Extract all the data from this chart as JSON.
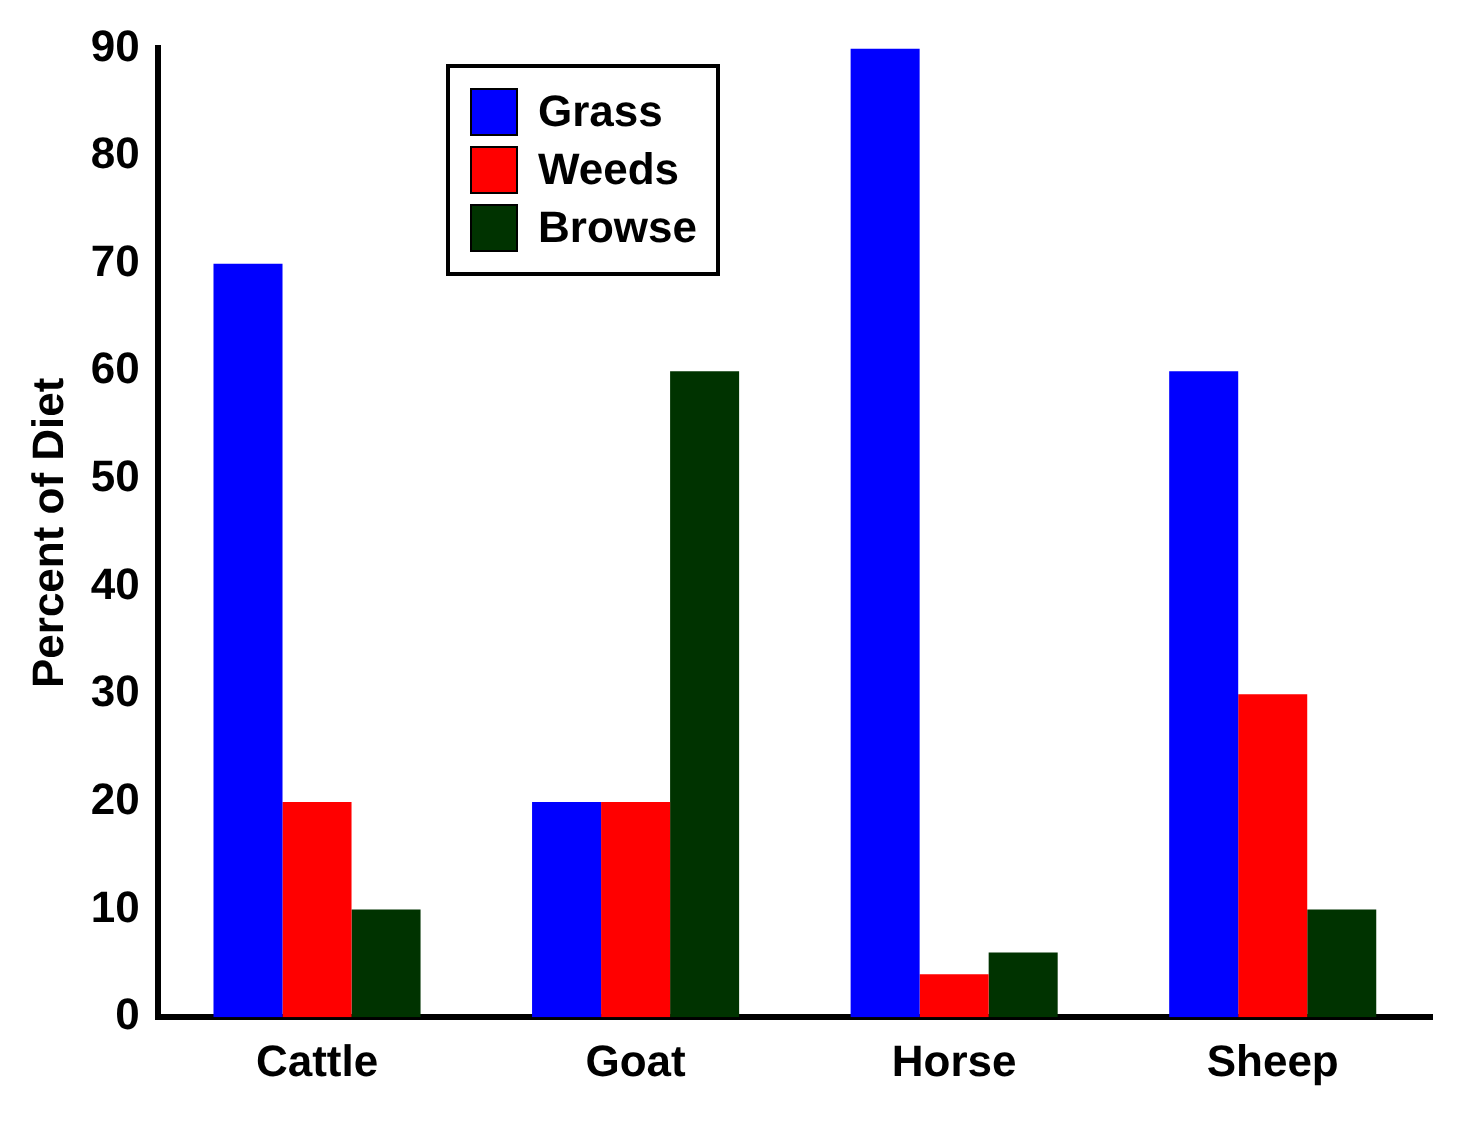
{
  "chart_data": {
    "type": "bar",
    "ylabel": "Percent of Diet",
    "categories": [
      "Cattle",
      "Goat",
      "Horse",
      "Sheep"
    ],
    "series": [
      {
        "name": "Grass",
        "color": "#0000ff",
        "values": [
          70,
          20,
          90,
          60
        ]
      },
      {
        "name": "Weeds",
        "color": "#ff0000",
        "values": [
          20,
          20,
          4,
          30
        ]
      },
      {
        "name": "Browse",
        "color": "#003300",
        "values": [
          10,
          60,
          6,
          10
        ]
      }
    ],
    "ylim": [
      0,
      90
    ],
    "yticks": [
      0,
      10,
      20,
      30,
      40,
      50,
      60,
      70,
      80,
      90
    ],
    "grid": false,
    "legend": "top left"
  }
}
